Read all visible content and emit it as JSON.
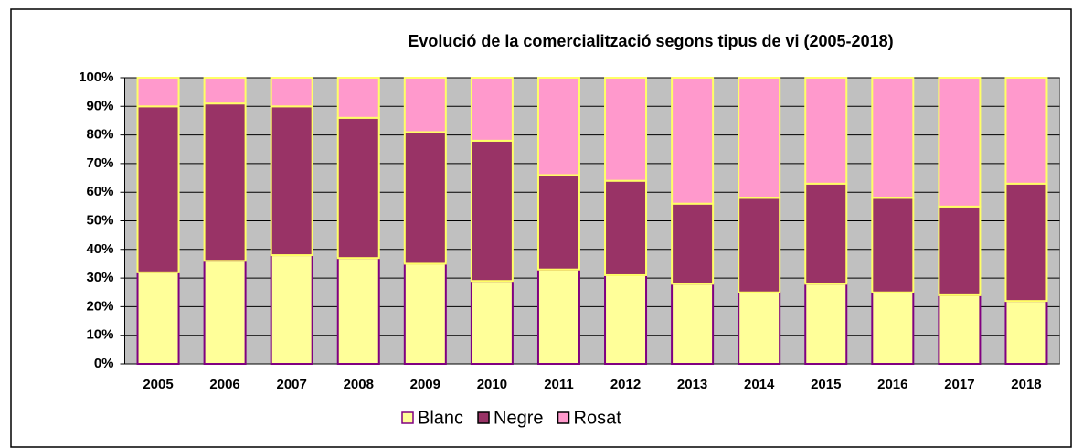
{
  "chart_data": {
    "type": "bar",
    "stacked": true,
    "title": "Evolució de la comercialització segons tipus de vi (2005-2018)",
    "categories": [
      "2005",
      "2006",
      "2007",
      "2008",
      "2009",
      "2010",
      "2011",
      "2012",
      "2013",
      "2014",
      "2015",
      "2016",
      "2017",
      "2018"
    ],
    "series": [
      {
        "name": "Blanc",
        "color": "#ffff99",
        "values": [
          32,
          36,
          38,
          37,
          35,
          29,
          33,
          31,
          28,
          25,
          28,
          25,
          24,
          22
        ]
      },
      {
        "name": "Negre",
        "color": "#993366",
        "values": [
          58,
          55,
          52,
          49,
          46,
          49,
          33,
          33,
          28,
          33,
          35,
          33,
          31,
          41
        ]
      },
      {
        "name": "Rosat",
        "color": "#ff99cc",
        "values": [
          10,
          9,
          10,
          14,
          19,
          22,
          34,
          36,
          44,
          42,
          37,
          42,
          45,
          37
        ]
      }
    ],
    "ylim": [
      0,
      100
    ],
    "yticks": [
      {
        "value": 0,
        "label": "0%"
      },
      {
        "value": 10,
        "label": "10%"
      },
      {
        "value": 20,
        "label": "20%"
      },
      {
        "value": 30,
        "label": "30%"
      },
      {
        "value": 40,
        "label": "40%"
      },
      {
        "value": 50,
        "label": "50%"
      },
      {
        "value": 60,
        "label": "60%"
      },
      {
        "value": 70,
        "label": "70%"
      },
      {
        "value": 80,
        "label": "80%"
      },
      {
        "value": 90,
        "label": "90%"
      },
      {
        "value": 100,
        "label": "100%"
      }
    ],
    "grid": true,
    "legend": "bottom"
  }
}
